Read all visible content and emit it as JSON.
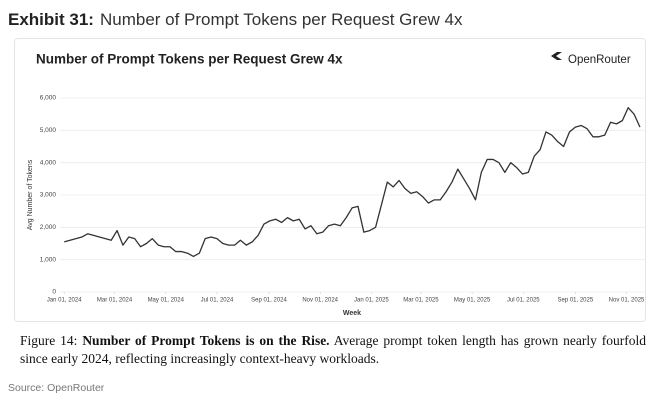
{
  "exhibit": {
    "label": "Exhibit 31:",
    "title": "Number of Prompt Tokens per Request Grew 4x"
  },
  "chart_data": {
    "type": "line",
    "title": "Number of Prompt Tokens per Request Grew 4x",
    "brand": "OpenRouter",
    "xlabel": "Week",
    "ylabel": "Avg Number of Tokens",
    "color": "#333333",
    "grid": true,
    "x": [
      "2024-01-01",
      "2024-01-08",
      "2024-01-15",
      "2024-01-22",
      "2024-01-29",
      "2024-02-05",
      "2024-02-12",
      "2024-02-19",
      "2024-02-26",
      "2024-03-04",
      "2024-03-11",
      "2024-03-18",
      "2024-03-25",
      "2024-04-01",
      "2024-04-08",
      "2024-04-15",
      "2024-04-22",
      "2024-04-29",
      "2024-05-06",
      "2024-05-13",
      "2024-05-20",
      "2024-05-27",
      "2024-06-03",
      "2024-06-10",
      "2024-06-17",
      "2024-06-24",
      "2024-07-01",
      "2024-07-08",
      "2024-07-15",
      "2024-07-22",
      "2024-07-29",
      "2024-08-05",
      "2024-08-12",
      "2024-08-19",
      "2024-08-26",
      "2024-09-02",
      "2024-09-09",
      "2024-09-16",
      "2024-09-23",
      "2024-09-30",
      "2024-10-07",
      "2024-10-14",
      "2024-10-21",
      "2024-10-28",
      "2024-11-04",
      "2024-11-11",
      "2024-11-18",
      "2024-11-25",
      "2024-12-02",
      "2024-12-09",
      "2024-12-16",
      "2024-12-23",
      "2024-12-30",
      "2025-01-06",
      "2025-01-13",
      "2025-01-20",
      "2025-01-27",
      "2025-02-03",
      "2025-02-10",
      "2025-02-17",
      "2025-02-24",
      "2025-03-03",
      "2025-03-10",
      "2025-03-17",
      "2025-03-24",
      "2025-03-31",
      "2025-04-07",
      "2025-04-14",
      "2025-04-21",
      "2025-04-28",
      "2025-05-05",
      "2025-05-12",
      "2025-05-19",
      "2025-05-26",
      "2025-06-02",
      "2025-06-09",
      "2025-06-16",
      "2025-06-23",
      "2025-06-30",
      "2025-07-07",
      "2025-07-14",
      "2025-07-21",
      "2025-07-28",
      "2025-08-04",
      "2025-08-11",
      "2025-08-18",
      "2025-08-25",
      "2025-09-01",
      "2025-09-08",
      "2025-09-15",
      "2025-09-22",
      "2025-09-29",
      "2025-10-06",
      "2025-10-13",
      "2025-10-20",
      "2025-10-27",
      "2025-11-03",
      "2025-11-10",
      "2025-11-17"
    ],
    "values": [
      1550,
      1600,
      1650,
      1700,
      1800,
      1750,
      1700,
      1650,
      1600,
      1900,
      1450,
      1700,
      1650,
      1400,
      1500,
      1650,
      1450,
      1400,
      1400,
      1250,
      1250,
      1200,
      1100,
      1200,
      1650,
      1700,
      1650,
      1500,
      1450,
      1450,
      1600,
      1450,
      1550,
      1750,
      2100,
      2200,
      2250,
      2150,
      2300,
      2200,
      2250,
      1950,
      2050,
      1800,
      1850,
      2050,
      2100,
      2050,
      2300,
      2600,
      2650,
      1850,
      1900,
      2000,
      2700,
      3400,
      3250,
      3450,
      3200,
      3050,
      3100,
      2950,
      2750,
      2850,
      2850,
      3100,
      3400,
      3800,
      3500,
      3200,
      2850,
      3700,
      4100,
      4100,
      4000,
      3700,
      4000,
      3850,
      3650,
      3700,
      4200,
      4400,
      4950,
      4850,
      4650,
      4500,
      4950,
      5100,
      5150,
      5050,
      4800,
      4800,
      4850,
      5250,
      5200,
      5300,
      5700,
      5500,
      5100
    ],
    "xlim": [
      "2023-12-27",
      "2025-11-23"
    ],
    "xticks": [
      {
        "value": "2024-01-01",
        "label": "Jan 01, 2024"
      },
      {
        "value": "2024-03-01",
        "label": "Mar 01, 2024"
      },
      {
        "value": "2024-05-01",
        "label": "May 01, 2024"
      },
      {
        "value": "2024-07-01",
        "label": "Jul 01, 2024"
      },
      {
        "value": "2024-09-01",
        "label": "Sep 01, 2024"
      },
      {
        "value": "2024-11-01",
        "label": "Nov 01, 2024"
      },
      {
        "value": "2025-01-01",
        "label": "Jan 01, 2025"
      },
      {
        "value": "2025-03-01",
        "label": "Mar 01, 2025"
      },
      {
        "value": "2025-05-01",
        "label": "May 01, 2025"
      },
      {
        "value": "2025-07-01",
        "label": "Jul 01, 2025"
      },
      {
        "value": "2025-09-01",
        "label": "Sep 01, 2025"
      },
      {
        "value": "2025-11-01",
        "label": "Nov 01, 2025"
      }
    ],
    "ylim": [
      0,
      6000
    ],
    "yticks": [
      0,
      {
        "value": 1000,
        "label": "1,000"
      },
      {
        "value": 2000,
        "label": "2,000"
      },
      {
        "value": 3000,
        "label": "3,000"
      },
      {
        "value": 4000,
        "label": "4,000"
      },
      {
        "value": 5000,
        "label": "5,000"
      },
      {
        "value": 6000,
        "label": "6,000"
      }
    ]
  },
  "caption": {
    "figure": "Figure 14:",
    "bold": "Number of Prompt Tokens is on the Rise.",
    "text": "Average prompt token length has grown nearly fourfold since early 2024, reflecting increasingly context-heavy workloads."
  },
  "source": "Source: OpenRouter"
}
